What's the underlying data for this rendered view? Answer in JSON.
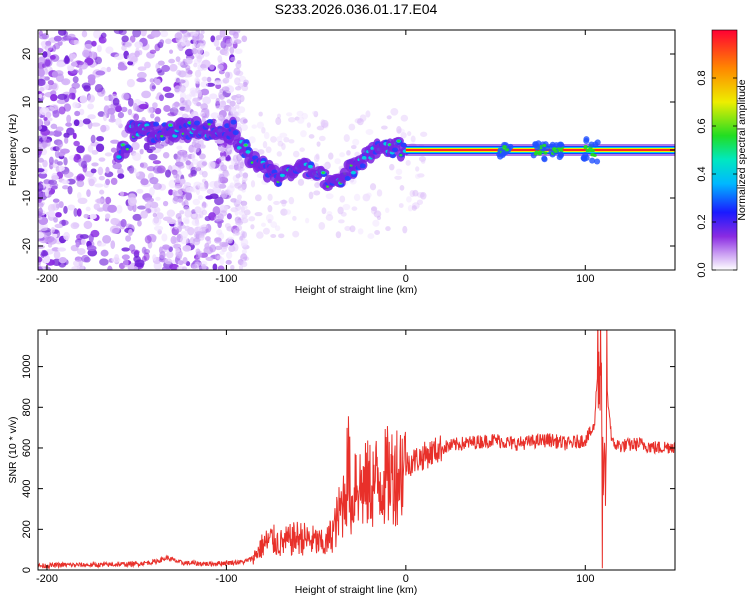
{
  "title": "S233.2026.036.01.17.E04",
  "chart_data": [
    {
      "type": "heatmap",
      "xlabel": "Height of straight line (km)",
      "ylabel": "Frequency (Hz)",
      "xlim": [
        -205,
        150
      ],
      "ylim": [
        -25,
        25
      ],
      "xticks": [
        -200,
        -100,
        0,
        100
      ],
      "yticks": [
        -20,
        -10,
        0,
        10,
        20
      ],
      "colorbar": {
        "label": "Normalized spectral amplitude",
        "range": [
          0,
          1
        ],
        "ticks": [
          "0.0",
          "0.2",
          "0.4",
          "0.6",
          "0.8"
        ]
      },
      "ridge": [
        {
          "x": -155,
          "f": 3.5
        },
        {
          "x": -130,
          "f": 4.0
        },
        {
          "x": -110,
          "f": 4.5
        },
        {
          "x": -96,
          "f": 4.0
        },
        {
          "x": -90,
          "f": 0.0
        },
        {
          "x": -80,
          "f": -4.0
        },
        {
          "x": -70,
          "f": -6.0
        },
        {
          "x": -58,
          "f": -3.0
        },
        {
          "x": -50,
          "f": -5.0
        },
        {
          "x": -40,
          "f": -7.0
        },
        {
          "x": -30,
          "f": -4.0
        },
        {
          "x": -20,
          "f": -1.0
        },
        {
          "x": -10,
          "f": 1.0
        },
        {
          "x": 0,
          "f": 0.0
        },
        {
          "x": 150,
          "f": 0.0
        }
      ]
    },
    {
      "type": "line",
      "xlabel": "Height of straight line (km)",
      "ylabel": "SNR (10 * v/v)",
      "xlim": [
        -205,
        150
      ],
      "ylim": [
        0,
        1180
      ],
      "xticks": [
        -200,
        -100,
        0,
        100
      ],
      "yticks": [
        0,
        200,
        400,
        600,
        800,
        1000
      ],
      "series": [
        {
          "color": "#e8302a",
          "x": [
            -205,
            -190,
            -170,
            -150,
            -140,
            -133,
            -125,
            -110,
            -100,
            -90,
            -85,
            -80,
            -75,
            -70,
            -60,
            -50,
            -45,
            -40,
            -35,
            -32,
            -30,
            -28,
            -25,
            -20,
            -15,
            -10,
            -5,
            0,
            10,
            20,
            30,
            40,
            50,
            60,
            70,
            80,
            90,
            100,
            105,
            108,
            110,
            112,
            115,
            120,
            130,
            140,
            150
          ],
          "values": [
            20,
            25,
            25,
            30,
            40,
            60,
            35,
            30,
            35,
            40,
            60,
            120,
            150,
            130,
            160,
            140,
            120,
            200,
            330,
            520,
            280,
            480,
            400,
            420,
            440,
            460,
            480,
            520,
            560,
            600,
            620,
            630,
            640,
            620,
            630,
            640,
            620,
            640,
            700,
            1150,
            80,
            900,
            620,
            610,
            620,
            600,
            610
          ]
        }
      ]
    }
  ]
}
